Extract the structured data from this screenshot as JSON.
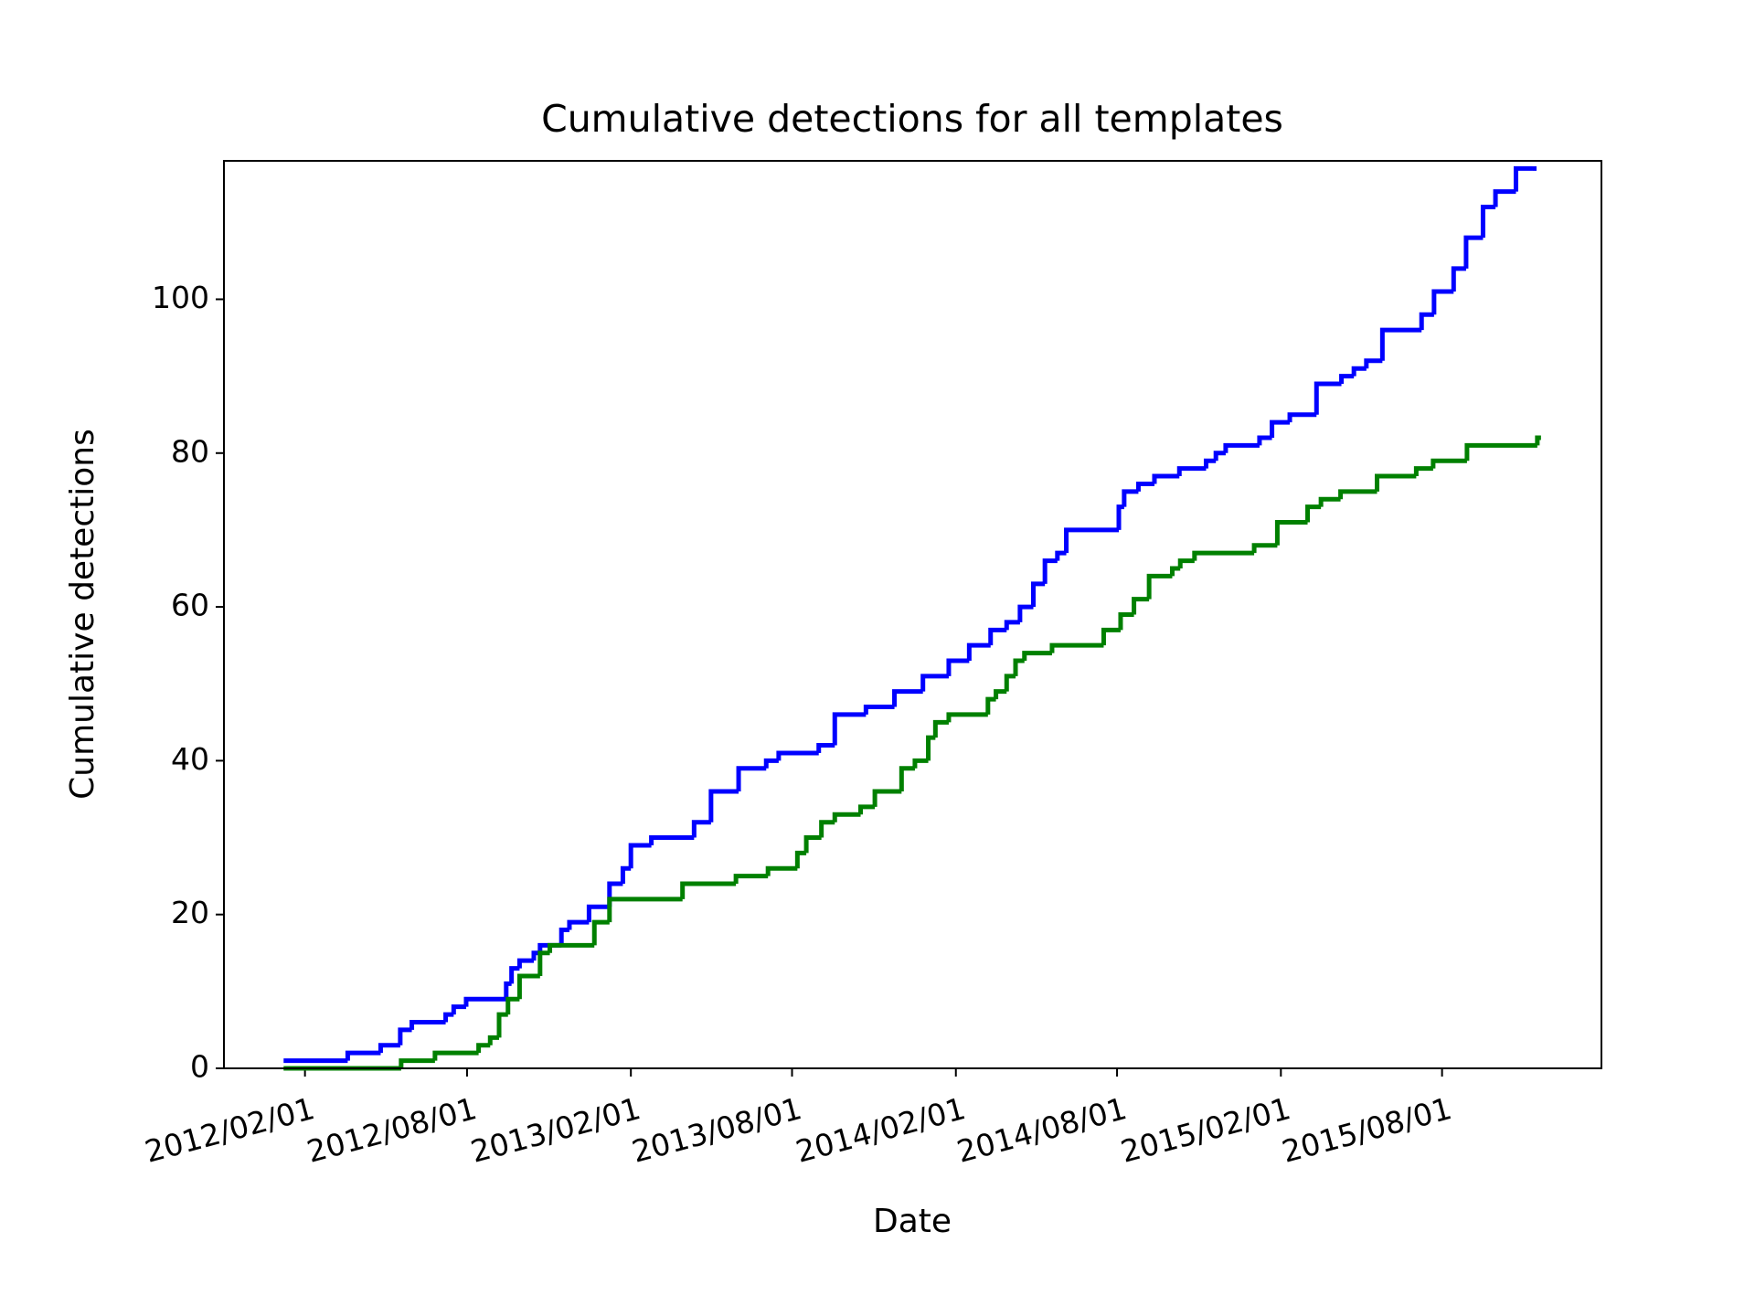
{
  "chart_data": {
    "type": "step",
    "title": "Cumulative detections for all templates",
    "x_label": "Date",
    "y_label": "Cumulative detections",
    "xlim": [
      "2011-11-02",
      "2016-01-27"
    ],
    "ylim": [
      0,
      118
    ],
    "xticks": [
      {
        "value": "2012-02-01",
        "label": "2012/02/01"
      },
      {
        "value": "2012-08-01",
        "label": "2012/08/01"
      },
      {
        "value": "2013-02-01",
        "label": "2013/02/01"
      },
      {
        "value": "2013-08-01",
        "label": "2013/08/01"
      },
      {
        "value": "2014-02-01",
        "label": "2014/02/01"
      },
      {
        "value": "2014-08-01",
        "label": "2014/08/01"
      },
      {
        "value": "2015-02-01",
        "label": "2015/02/01"
      },
      {
        "value": "2015-08-01",
        "label": "2015/08/01"
      }
    ],
    "yticks": [
      0,
      20,
      40,
      60,
      80,
      100
    ],
    "series": [
      {
        "color": "#0000ff",
        "x": [
          "2012-01-08",
          "2012-03-20",
          "2012-04-26",
          "2012-05-18",
          "2012-05-31",
          "2012-07-08",
          "2012-07-17",
          "2012-07-31",
          "2012-09-14",
          "2012-09-20",
          "2012-09-29",
          "2012-10-15",
          "2012-10-22",
          "2012-11-15",
          "2012-11-24",
          "2012-12-16",
          "2013-01-08",
          "2013-01-23",
          "2013-02-01",
          "2013-02-24",
          "2013-04-13",
          "2013-05-02",
          "2013-06-02",
          "2013-07-03",
          "2013-07-17",
          "2013-08-31",
          "2013-09-18",
          "2013-10-23",
          "2013-11-24",
          "2013-12-26",
          "2014-01-24",
          "2014-02-16",
          "2014-03-12",
          "2014-03-30",
          "2014-04-14",
          "2014-04-29",
          "2014-05-12",
          "2014-05-26",
          "2014-06-05",
          "2014-08-03",
          "2014-08-09",
          "2014-08-25",
          "2014-09-12",
          "2014-10-10",
          "2014-11-09",
          "2014-11-20",
          "2014-12-01",
          "2015-01-08",
          "2015-01-22",
          "2015-02-11",
          "2015-03-13",
          "2015-04-10",
          "2015-04-24",
          "2015-05-08",
          "2015-05-26",
          "2015-07-09",
          "2015-07-23",
          "2015-08-14",
          "2015-08-28",
          "2015-09-16",
          "2015-09-30",
          "2015-10-23",
          "2015-11-11"
        ],
        "values": [
          1,
          2,
          3,
          5,
          6,
          7,
          8,
          9,
          11,
          13,
          14,
          15,
          16,
          18,
          19,
          21,
          24,
          26,
          29,
          30,
          32,
          36,
          39,
          40,
          41,
          42,
          46,
          47,
          49,
          51,
          53,
          55,
          57,
          58,
          60,
          63,
          66,
          67,
          70,
          73,
          75,
          76,
          77,
          78,
          79,
          80,
          81,
          82,
          84,
          85,
          89,
          90,
          91,
          92,
          96,
          98,
          101,
          104,
          108,
          112,
          114,
          117,
          117
        ]
      },
      {
        "color": "#008000",
        "x": [
          "2012-01-08",
          "2012-05-19",
          "2012-06-26",
          "2012-08-14",
          "2012-08-27",
          "2012-09-06",
          "2012-09-16",
          "2012-09-29",
          "2012-10-22",
          "2012-11-02",
          "2012-12-22",
          "2013-01-08",
          "2013-03-31",
          "2013-05-30",
          "2013-07-05",
          "2013-08-07",
          "2013-08-17",
          "2013-09-03",
          "2013-09-18",
          "2013-10-17",
          "2013-11-02",
          "2013-12-02",
          "2013-12-17",
          "2014-01-01",
          "2014-01-09",
          "2014-01-24",
          "2014-03-09",
          "2014-03-18",
          "2014-03-30",
          "2014-04-09",
          "2014-04-19",
          "2014-05-20",
          "2014-07-17",
          "2014-08-05",
          "2014-08-20",
          "2014-09-06",
          "2014-10-02",
          "2014-10-11",
          "2014-10-27",
          "2015-01-02",
          "2015-01-28",
          "2015-03-03",
          "2015-03-18",
          "2015-04-09",
          "2015-05-20",
          "2015-07-03",
          "2015-07-22",
          "2015-08-29",
          "2015-11-16"
        ],
        "values": [
          0,
          1,
          2,
          3,
          4,
          7,
          9,
          12,
          15,
          16,
          19,
          22,
          24,
          25,
          26,
          28,
          30,
          32,
          33,
          34,
          36,
          39,
          40,
          43,
          45,
          46,
          48,
          49,
          51,
          53,
          54,
          55,
          57,
          59,
          61,
          64,
          65,
          66,
          67,
          68,
          71,
          73,
          74,
          75,
          77,
          78,
          79,
          81,
          82
        ]
      }
    ]
  }
}
